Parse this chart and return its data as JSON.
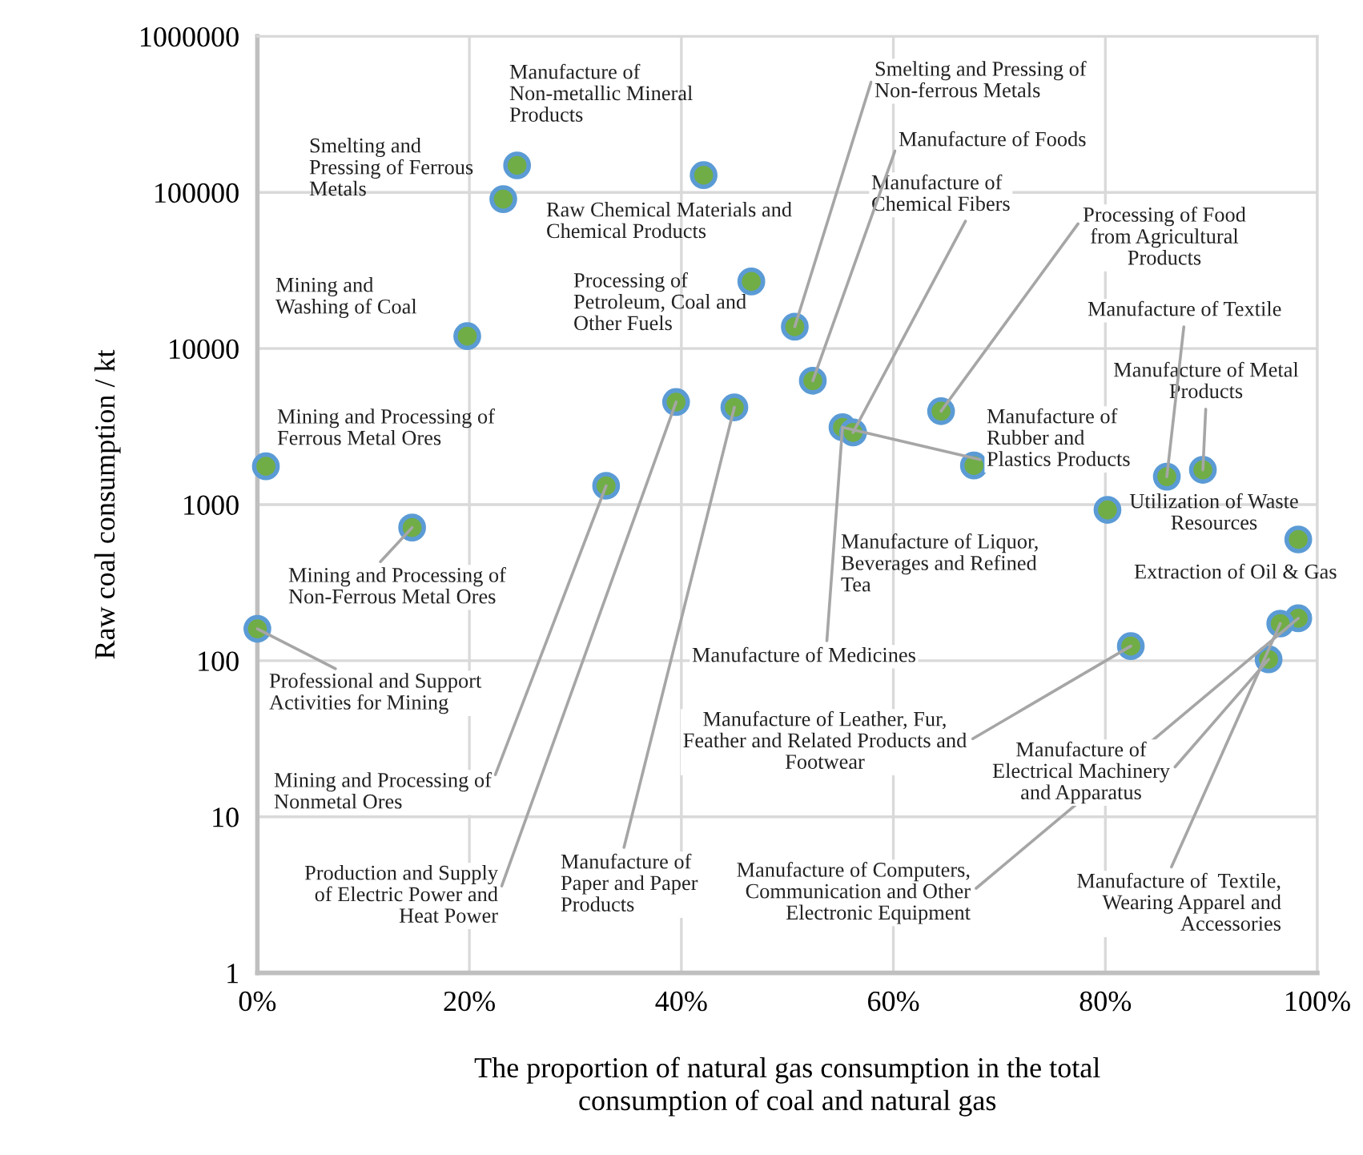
{
  "chart_data": {
    "type": "scatter",
    "xlabel": "The proportion of natural gas consumption in the total\nconsumption of coal and natural gas",
    "ylabel": "Raw coal consumption / kt",
    "x": [
      24.5,
      23.2,
      42.1,
      46.6,
      50.7,
      19.8,
      39.5,
      45.0,
      0.8,
      32.9,
      14.6,
      0,
      52.4,
      55.2,
      56.2,
      64.5,
      67.6,
      85.8,
      89.2,
      80.2,
      98.2,
      82.4,
      98.2,
      96.5,
      95.4
    ],
    "series": [
      {
        "color": "#70ad47",
        "values": [
          149000,
          90600,
          129000,
          26900,
          13800,
          12000,
          4540,
          4200,
          1760,
          1320,
          713,
          160,
          6220,
          3130,
          2900,
          3970,
          1780,
          1510,
          1670,
          925,
          598,
          124,
          187,
          173,
          102
        ]
      }
    ],
    "marker": "circle",
    "log": "y",
    "grid": true,
    "xlim": [
      0,
      100
    ],
    "xticks": [
      {
        "value": 0,
        "label": "0%"
      },
      {
        "value": 20,
        "label": "20%"
      },
      {
        "value": 40,
        "label": "40%"
      },
      {
        "value": 60,
        "label": "60%"
      },
      {
        "value": 80,
        "label": "80%"
      },
      {
        "value": 100,
        "label": "100%"
      }
    ],
    "ylim": [
      1,
      1000000
    ],
    "yticks": [
      1,
      10,
      100,
      1000,
      10000,
      100000,
      1000000
    ],
    "annotations": [
      "Manufacture of\nNon-metallic Mineral\nProducts",
      "Smelting and\nPressing of Ferrous\nMetals",
      "Raw Chemical Materials and\nChemical Products",
      "Processing of\nPetroleum, Coal and\nOther Fuels",
      "Mining and\nWashing of Coal",
      {
        "text": "Smelting and Pressing of\nNon-ferrous Metals",
        "x": 50.7,
        "y": 13800
      },
      {
        "text": "Manufacture of Foods",
        "x": 52.4,
        "y": 6220
      },
      {
        "text": "Manufacture of\nChemical Fibers",
        "x": 56.2,
        "y": 2900
      },
      {
        "text": "Processing of Food\nfrom Agricultural\nProducts",
        "x": 64.5,
        "y": 3970
      },
      {
        "text": "Manufacture of Textile",
        "x": 85.8,
        "y": 1510
      },
      {
        "text": "Manufacture of Metal\nProducts",
        "x": 89.2,
        "y": 1670
      },
      {
        "text": "Manufacture of\nRubber and\nPlastics Products",
        "x": 55.2,
        "y": 3130
      },
      "Mining and Processing of\nFerrous Metal Ores",
      "Utilization of Waste\nResources",
      "Manufacture of Liquor,\nBeverages and Refined\nTea",
      "Extraction of Oil & Gas",
      {
        "text": "Mining and Processing of\nNon-Ferrous Metal Ores",
        "x": 14.6,
        "y": 713
      },
      {
        "text": "Professional and Support\nActivities for Mining",
        "x": 0,
        "y": 160
      },
      {
        "text": "Manufacture of Medicines",
        "x": 55.2,
        "y": 3130
      },
      {
        "text": "Manufacture of Leather, Fur,\nFeather and Related Products and\nFootwear",
        "x": 82.4,
        "y": 124
      },
      {
        "text": "Manufacture of\nElectrical Machinery\nand Apparatus",
        "x": 95.4,
        "y": 102
      },
      {
        "text": "Mining and Processing of\nNonmetal Ores",
        "x": 32.9,
        "y": 1320
      },
      {
        "text": "Manufacture of\nPaper and Paper\nProducts",
        "x": 45.0,
        "y": 4200
      },
      {
        "text": "Production and Supply\nof Electric Power and\nHeat Power",
        "x": 39.5,
        "y": 4540
      },
      {
        "text": "Manufacture of Computers,\nCommunication and Other\nElectronic Equipment",
        "x": 98.2,
        "y": 187
      },
      {
        "text": "Manufacture of  Textile,\nWearing Apparel and\nAccessories",
        "x": 96.5,
        "y": 173
      }
    ]
  }
}
